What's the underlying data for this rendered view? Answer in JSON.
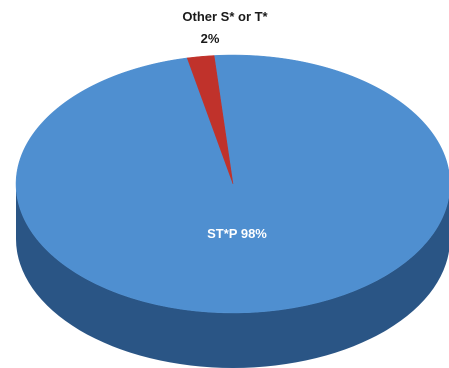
{
  "chart_data": {
    "type": "pie",
    "style": "3d",
    "title": "",
    "slices": [
      {
        "label": "ST*P",
        "value": 98,
        "value_label": "98%",
        "color": "#4f8fd0",
        "side_color": "#2a5585"
      },
      {
        "label": "Other S* or T*",
        "value": 2,
        "value_label": "2%",
        "color": "#c0322b",
        "side_color": "#8a1f1a"
      }
    ],
    "legend": "none"
  }
}
